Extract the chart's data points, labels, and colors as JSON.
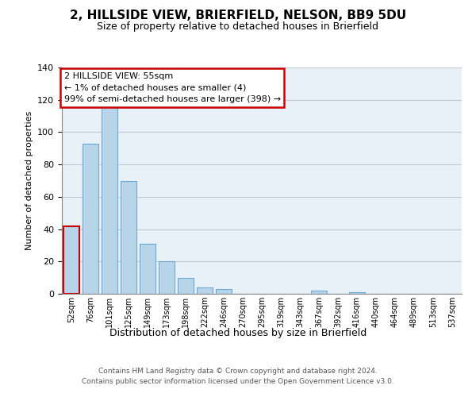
{
  "title": "2, HILLSIDE VIEW, BRIERFIELD, NELSON, BB9 5DU",
  "subtitle": "Size of property relative to detached houses in Brierfield",
  "xlabel": "Distribution of detached houses by size in Brierfield",
  "ylabel": "Number of detached properties",
  "bar_labels": [
    "52sqm",
    "76sqm",
    "101sqm",
    "125sqm",
    "149sqm",
    "173sqm",
    "198sqm",
    "222sqm",
    "246sqm",
    "270sqm",
    "295sqm",
    "319sqm",
    "343sqm",
    "367sqm",
    "392sqm",
    "416sqm",
    "440sqm",
    "464sqm",
    "489sqm",
    "513sqm",
    "537sqm"
  ],
  "all_bar_values": [
    42,
    93,
    116,
    70,
    31,
    20,
    10,
    4,
    3,
    0,
    0,
    0,
    0,
    2,
    0,
    1,
    0,
    0,
    0,
    0,
    0
  ],
  "bar_color": "#b8d4e8",
  "bar_edge_color": "#6aaad4",
  "highlight_edge_color": "#cc0000",
  "plot_bg_color": "#e8f0f8",
  "ylim": [
    0,
    140
  ],
  "yticks": [
    0,
    20,
    40,
    60,
    80,
    100,
    120,
    140
  ],
  "annotation_title": "2 HILLSIDE VIEW: 55sqm",
  "annotation_line1": "← 1% of detached houses are smaller (4)",
  "annotation_line2": "99% of semi-detached houses are larger (398) →",
  "annotation_box_color": "#ffffff",
  "annotation_box_edge": "#cc0000",
  "footer_line1": "Contains HM Land Registry data © Crown copyright and database right 2024.",
  "footer_line2": "Contains public sector information licensed under the Open Government Licence v3.0.",
  "background_color": "#ffffff",
  "grid_color": "#c0c8d8"
}
